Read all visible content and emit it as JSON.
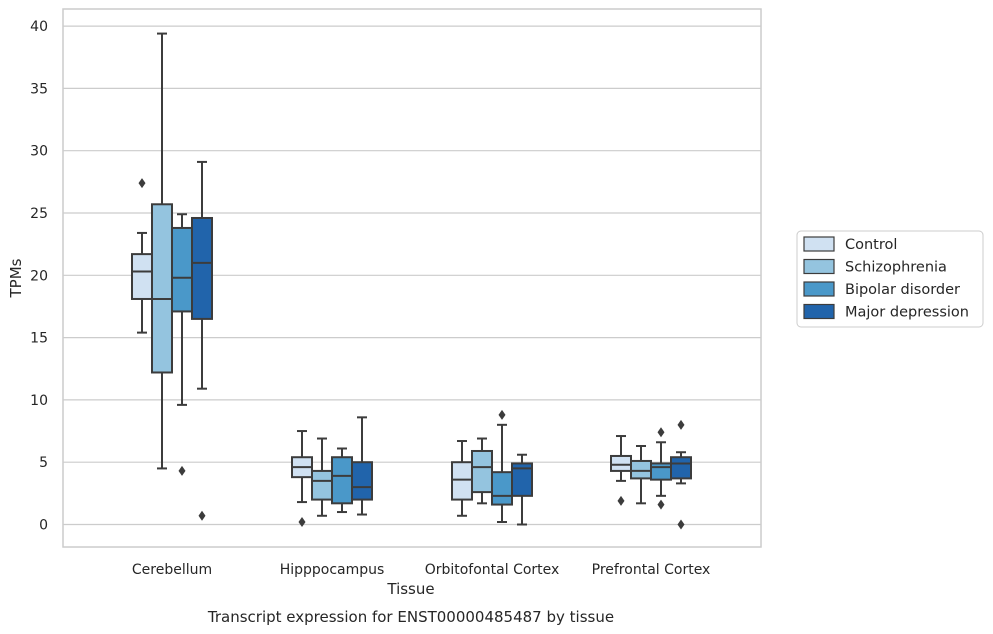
{
  "chart_data": {
    "type": "box",
    "title": "Transcript expression for ENST00000485487 by tissue",
    "xlabel": "Tissue",
    "ylabel": "TPMs",
    "ylim": [
      -1.8,
      41.4
    ],
    "yticks": [
      0,
      5,
      10,
      15,
      20,
      25,
      30,
      35,
      40
    ],
    "grid": "horizontal",
    "legend_position": "right-center",
    "categories": [
      "Cerebellum",
      "Hipppocampus",
      "Orbitofontal Cortex",
      "Prefrontal Cortex"
    ],
    "series": [
      {
        "name": "Control",
        "color": "#d0e1f2",
        "boxes": [
          {
            "min": 15.4,
            "q1": 18.1,
            "median": 20.3,
            "q3": 21.7,
            "max": 23.4,
            "outliers": [
              27.4
            ]
          },
          {
            "min": 1.8,
            "q1": 3.8,
            "median": 4.6,
            "q3": 5.4,
            "max": 7.5,
            "outliers": [
              0.2
            ]
          },
          {
            "min": 0.7,
            "q1": 2.0,
            "median": 3.6,
            "q3": 5.0,
            "max": 6.7,
            "outliers": []
          },
          {
            "min": 3.5,
            "q1": 4.3,
            "median": 4.8,
            "q3": 5.5,
            "max": 7.1,
            "outliers": [
              1.9
            ]
          }
        ]
      },
      {
        "name": "Schizophrenia",
        "color": "#94c4df",
        "boxes": [
          {
            "min": 4.5,
            "q1": 12.2,
            "median": 18.1,
            "q3": 25.7,
            "max": 39.4,
            "outliers": []
          },
          {
            "min": 0.7,
            "q1": 2.0,
            "median": 3.5,
            "q3": 4.3,
            "max": 6.9,
            "outliers": []
          },
          {
            "min": 1.7,
            "q1": 2.6,
            "median": 4.6,
            "q3": 5.9,
            "max": 6.9,
            "outliers": []
          },
          {
            "min": 1.7,
            "q1": 3.7,
            "median": 4.3,
            "q3": 5.1,
            "max": 6.3,
            "outliers": []
          }
        ]
      },
      {
        "name": "Bipolar disorder",
        "color": "#4a98c9",
        "boxes": [
          {
            "min": 9.6,
            "q1": 17.1,
            "median": 19.8,
            "q3": 23.8,
            "max": 24.9,
            "outliers": [
              4.3
            ]
          },
          {
            "min": 1.0,
            "q1": 1.7,
            "median": 3.9,
            "q3": 5.4,
            "max": 6.1,
            "outliers": []
          },
          {
            "min": 0.2,
            "q1": 1.6,
            "median": 2.3,
            "q3": 4.2,
            "max": 8.0,
            "outliers": [
              8.8
            ]
          },
          {
            "min": 2.3,
            "q1": 3.6,
            "median": 4.6,
            "q3": 4.9,
            "max": 6.6,
            "outliers": [
              7.4,
              1.6
            ]
          }
        ]
      },
      {
        "name": "Major depression",
        "color": "#2164ab",
        "boxes": [
          {
            "min": 10.9,
            "q1": 16.5,
            "median": 21.0,
            "q3": 24.6,
            "max": 29.1,
            "outliers": [
              0.7
            ]
          },
          {
            "min": 0.8,
            "q1": 2.0,
            "median": 3.0,
            "q3": 5.0,
            "max": 8.6,
            "outliers": []
          },
          {
            "min": 0.0,
            "q1": 2.3,
            "median": 4.5,
            "q3": 4.9,
            "max": 5.6,
            "outliers": []
          },
          {
            "min": 3.3,
            "q1": 3.7,
            "median": 4.9,
            "q3": 5.4,
            "max": 5.8,
            "outliers": [
              8.0,
              0.0
            ]
          }
        ]
      }
    ]
  }
}
